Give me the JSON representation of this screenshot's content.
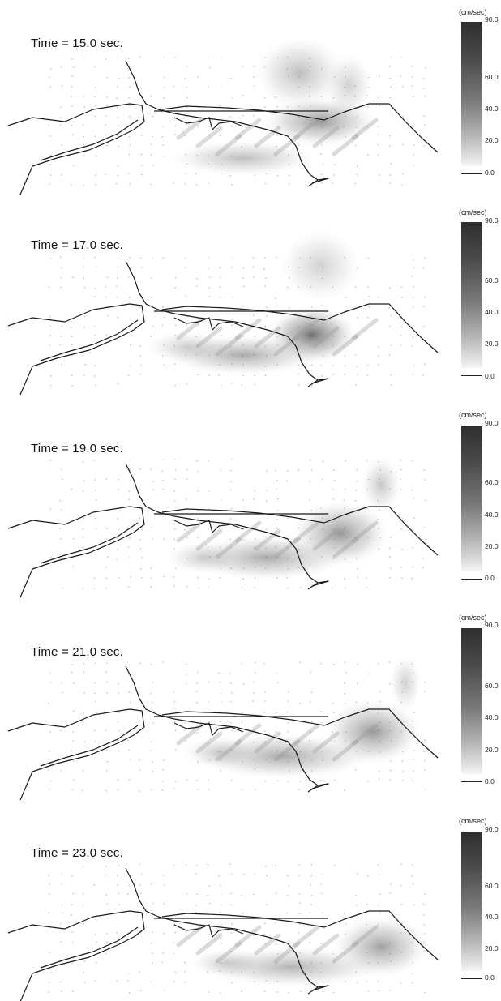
{
  "unit": "(cm/sec)",
  "scale_ticks": [
    "90.0",
    "60.0",
    "40.0",
    "20.0",
    "0.0"
  ],
  "scale_tick_values": [
    90,
    60,
    40,
    20,
    0
  ],
  "scale_range": [
    0,
    90
  ],
  "colors": {
    "line": "#1a1a1a",
    "dot": "#c9c9c9",
    "shade_dark": "#2e2e2e",
    "shade_light": "#f6f6f6"
  },
  "panels": [
    {
      "time_label": "Time = 15.0 sec."
    },
    {
      "time_label": "Time = 17.0 sec."
    },
    {
      "time_label": "Time = 19.0 sec."
    },
    {
      "time_label": "Time = 21.0 sec."
    },
    {
      "time_label": "Time = 23.0 sec."
    }
  ]
}
